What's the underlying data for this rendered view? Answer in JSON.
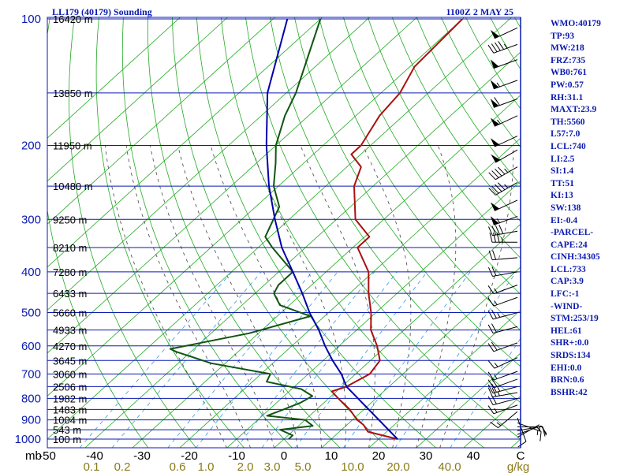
{
  "header": {
    "station": "LL179 (40179) Sounding",
    "time": "1100Z  2 MAY 25"
  },
  "colors": {
    "isobar": "#0b1ab0",
    "isotherm": "#22aa22",
    "dry_adiabat": "#22aa22",
    "moist_adiabat": "#444444",
    "mixing_ratio": "#3399ee",
    "temperature": "#aa1111",
    "dewpoint": "#115511",
    "parcel": "#0000aa",
    "stats_text": "#0b1ab0",
    "mixing_labels": "#8b7a1a"
  },
  "pressure_labels": [
    "100",
    "200",
    "300",
    "400",
    "500",
    "600",
    "700",
    "800",
    "900",
    "1000"
  ],
  "unit_label": "mb",
  "height_labels": [
    {
      "p": 100,
      "label": "16420 m"
    },
    {
      "p": 150,
      "label": "13850 m"
    },
    {
      "p": 200,
      "label": "11950 m"
    },
    {
      "p": 250,
      "label": "10480 m"
    },
    {
      "p": 300,
      "label": "9250 m"
    },
    {
      "p": 350,
      "label": "8210 m"
    },
    {
      "p": 400,
      "label": "7280 m"
    },
    {
      "p": 450,
      "label": "6433 m"
    },
    {
      "p": 500,
      "label": "5660 m"
    },
    {
      "p": 550,
      "label": "4933 m"
    },
    {
      "p": 600,
      "label": "4270 m"
    },
    {
      "p": 650,
      "label": "3645 m"
    },
    {
      "p": 700,
      "label": "3060 m"
    },
    {
      "p": 750,
      "label": "2506 m"
    },
    {
      "p": 800,
      "label": "1982 m"
    },
    {
      "p": 850,
      "label": "1483 m"
    },
    {
      "p": 900,
      "label": "1004 m"
    },
    {
      "p": 950,
      "label": "543 m"
    },
    {
      "p": 1000,
      "label": "100 m"
    }
  ],
  "temp_labels": [
    "-50",
    "-40",
    "-30",
    "-20",
    "-10",
    "0",
    "10",
    "20",
    "30",
    "40",
    "C"
  ],
  "mixing_labels": [
    "0.1",
    "0.2",
    "0.6",
    "1.0",
    "2.0",
    "3.0",
    "5.0",
    "10.0",
    "20.0",
    "40.0",
    "g/kg"
  ],
  "stats": [
    "WMO:40179",
    "TP:93",
    "MW:218",
    "FRZ:735",
    "WB0:761",
    "PW:0.57",
    "RH:31.1",
    "MAXT:23.9",
    "TH:5560",
    "L57:7.0",
    "LCL:740",
    "LI:2.5",
    "SI:1.4",
    "TT:51",
    "KI:13",
    "SW:138",
    "EI:-0.4",
    "-PARCEL-",
    "CAPE:24",
    "CINH:34305",
    "LCL:733",
    "CAP:3.9",
    "LFC:-1",
    "-WIND-",
    "STM:253/19",
    "HEL:61",
    "SHR+:0.0",
    "SRDS:134",
    "EHI:0.0",
    "BRN:0.6",
    "BSHR:42"
  ],
  "chart_data": {
    "type": "line",
    "diagram": "skew-T log-P",
    "x_unit": "°C",
    "y_unit": "mb",
    "y_scale": "log",
    "ylim": [
      1000,
      100
    ],
    "xlim_at_1000mb": [
      -50,
      50
    ],
    "series": [
      {
        "key": "temperature",
        "points": [
          [
            1000,
            24
          ],
          [
            960,
            16
          ],
          [
            925,
            13.5
          ],
          [
            900,
            11
          ],
          [
            850,
            7
          ],
          [
            800,
            2
          ],
          [
            770,
            -1
          ],
          [
            750,
            1
          ],
          [
            700,
            3
          ],
          [
            650,
            2
          ],
          [
            600,
            -2
          ],
          [
            550,
            -7
          ],
          [
            500,
            -11
          ],
          [
            450,
            -16
          ],
          [
            400,
            -21
          ],
          [
            350,
            -29
          ],
          [
            330,
            -29
          ],
          [
            300,
            -36
          ],
          [
            250,
            -44
          ],
          [
            225,
            -47
          ],
          [
            210,
            -52
          ],
          [
            200,
            -52
          ],
          [
            170,
            -55
          ],
          [
            150,
            -56
          ],
          [
            130,
            -59
          ],
          [
            100,
            -60
          ]
        ]
      },
      {
        "key": "dewpoint",
        "points": [
          [
            1000,
            1
          ],
          [
            980,
            1
          ],
          [
            950,
            -3
          ],
          [
            930,
            3
          ],
          [
            900,
            0
          ],
          [
            880,
            -9
          ],
          [
            850,
            -7
          ],
          [
            820,
            -5
          ],
          [
            790,
            -4
          ],
          [
            760,
            -8
          ],
          [
            730,
            -17
          ],
          [
            700,
            -18
          ],
          [
            660,
            -33
          ],
          [
            620,
            -43
          ],
          [
            610,
            -45
          ],
          [
            560,
            -32
          ],
          [
            510,
            -23
          ],
          [
            480,
            -32
          ],
          [
            450,
            -36
          ],
          [
            430,
            -37
          ],
          [
            400,
            -37
          ],
          [
            350,
            -47
          ],
          [
            330,
            -51
          ],
          [
            280,
            -55
          ],
          [
            250,
            -61
          ],
          [
            220,
            -66
          ],
          [
            200,
            -70
          ],
          [
            170,
            -75
          ],
          [
            150,
            -78
          ],
          [
            100,
            -90
          ]
        ]
      },
      {
        "key": "parcel",
        "points": [
          [
            1000,
            24
          ],
          [
            750,
            1
          ],
          [
            700,
            -3
          ],
          [
            650,
            -8
          ],
          [
            600,
            -13
          ],
          [
            550,
            -18
          ],
          [
            500,
            -24
          ],
          [
            450,
            -30
          ],
          [
            400,
            -37
          ],
          [
            350,
            -45
          ],
          [
            300,
            -53
          ],
          [
            250,
            -62
          ],
          [
            200,
            -72
          ],
          [
            150,
            -84
          ],
          [
            100,
            -97
          ]
        ]
      }
    ],
    "wind_barbs": [
      {
        "p": 990,
        "dir": 60,
        "spd": 5
      },
      {
        "p": 975,
        "dir": 70,
        "spd": 10
      },
      {
        "p": 955,
        "dir": 80,
        "spd": 10
      },
      {
        "p": 935,
        "dir": 90,
        "spd": 15
      },
      {
        "p": 915,
        "dir": 110,
        "spd": 15
      },
      {
        "p": 890,
        "dir": 160,
        "spd": 10
      },
      {
        "p": 860,
        "dir": 230,
        "spd": 15
      },
      {
        "p": 830,
        "dir": 250,
        "spd": 15
      },
      {
        "p": 800,
        "dir": 255,
        "spd": 20
      },
      {
        "p": 775,
        "dir": 260,
        "spd": 25
      },
      {
        "p": 750,
        "dir": 255,
        "spd": 25
      },
      {
        "p": 720,
        "dir": 250,
        "spd": 20
      },
      {
        "p": 690,
        "dir": 250,
        "spd": 15
      },
      {
        "p": 640,
        "dir": 245,
        "spd": 15
      },
      {
        "p": 590,
        "dir": 250,
        "spd": 20
      },
      {
        "p": 540,
        "dir": 255,
        "spd": 20
      },
      {
        "p": 500,
        "dir": 255,
        "spd": 25
      },
      {
        "p": 460,
        "dir": 250,
        "spd": 15
      },
      {
        "p": 430,
        "dir": 250,
        "spd": 15
      },
      {
        "p": 400,
        "dir": 260,
        "spd": 20
      },
      {
        "p": 370,
        "dir": 265,
        "spd": 20
      },
      {
        "p": 340,
        "dir": 270,
        "spd": 35
      },
      {
        "p": 320,
        "dir": 260,
        "spd": 40
      },
      {
        "p": 295,
        "dir": 250,
        "spd": 55
      },
      {
        "p": 270,
        "dir": 245,
        "spd": 50
      },
      {
        "p": 245,
        "dir": 240,
        "spd": 45
      },
      {
        "p": 225,
        "dir": 240,
        "spd": 45
      },
      {
        "p": 205,
        "dir": 240,
        "spd": 50
      },
      {
        "p": 190,
        "dir": 245,
        "spd": 50
      },
      {
        "p": 170,
        "dir": 245,
        "spd": 55
      },
      {
        "p": 155,
        "dir": 250,
        "spd": 60
      },
      {
        "p": 140,
        "dir": 250,
        "spd": 55
      },
      {
        "p": 125,
        "dir": 250,
        "spd": 50
      },
      {
        "p": 115,
        "dir": 250,
        "spd": 45
      },
      {
        "p": 105,
        "dir": 245,
        "spd": 50
      }
    ],
    "isotherm_range": [
      -120,
      50
    ],
    "dry_adiabats_theta_C": [
      -30,
      -20,
      -10,
      0,
      10,
      20,
      30,
      40,
      50,
      60,
      70,
      80,
      90,
      100,
      110,
      120,
      130,
      140,
      150,
      160,
      170,
      180,
      190,
      200,
      210,
      220,
      230,
      240,
      250,
      260
    ],
    "moist_adiabats_start_C": [
      -10,
      -5,
      0,
      5,
      10,
      15,
      20,
      25,
      30,
      35
    ],
    "mixing_ratio_lines_gkg": [
      0.1,
      0.2,
      0.6,
      1.0,
      2.0,
      3.0,
      5.0,
      10.0,
      20.0,
      40.0
    ]
  }
}
